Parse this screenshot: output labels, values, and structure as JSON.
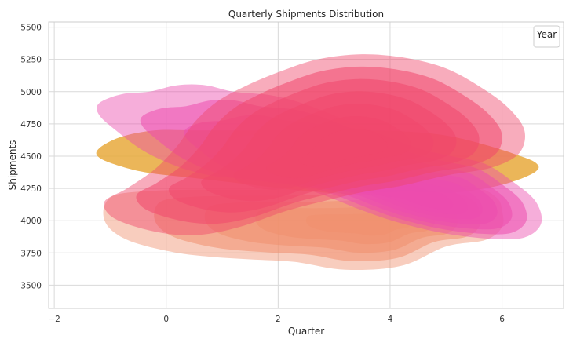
{
  "chart_data": {
    "type": "kde-contour",
    "title": "Quarterly Shipments Distribution",
    "xlabel": "Quarter",
    "ylabel": "Shipments",
    "xlim": [
      -2.1,
      7.1
    ],
    "ylim": [
      3320,
      5540
    ],
    "xticks": [
      -2,
      0,
      2,
      4,
      6
    ],
    "yticks": [
      3500,
      3750,
      4000,
      4250,
      4500,
      4750,
      5000,
      5250,
      5500
    ],
    "grid": true,
    "legend": {
      "title": "Year",
      "placement": "top-right",
      "entries": []
    },
    "series": [
      {
        "color": "#e8a93c",
        "levels": 1,
        "outline": [
          [
            -1.2,
            4560
          ],
          [
            -0.8,
            4650
          ],
          [
            -0.2,
            4700
          ],
          [
            0.5,
            4700
          ],
          [
            1.5,
            4700
          ],
          [
            2.5,
            4700
          ],
          [
            3.5,
            4700
          ],
          [
            4.3,
            4690
          ],
          [
            5.0,
            4660
          ],
          [
            5.6,
            4600
          ],
          [
            6.2,
            4520
          ],
          [
            6.6,
            4450
          ],
          [
            6.6,
            4380
          ],
          [
            6.1,
            4290
          ],
          [
            5.4,
            4230
          ],
          [
            4.5,
            4200
          ],
          [
            3.5,
            4200
          ],
          [
            2.5,
            4230
          ],
          [
            1.5,
            4280
          ],
          [
            0.5,
            4330
          ],
          [
            -0.3,
            4370
          ],
          [
            -0.8,
            4420
          ],
          [
            -1.2,
            4490
          ]
        ],
        "peak": [
          0.0,
          4520
        ]
      },
      {
        "color": "#f0906e",
        "levels": 5,
        "outline": [
          [
            -1.1,
            4120
          ],
          [
            -0.9,
            4200
          ],
          [
            -0.3,
            4230
          ],
          [
            0.5,
            4240
          ],
          [
            1.5,
            4240
          ],
          [
            2.5,
            4250
          ],
          [
            3.5,
            4270
          ],
          [
            4.5,
            4280
          ],
          [
            5.5,
            4260
          ],
          [
            5.9,
            4180
          ],
          [
            6.0,
            4080
          ],
          [
            6.0,
            3950
          ],
          [
            5.7,
            3850
          ],
          [
            5.0,
            3800
          ],
          [
            4.2,
            3650
          ],
          [
            3.2,
            3620
          ],
          [
            2.3,
            3680
          ],
          [
            1.5,
            3700
          ],
          [
            0.8,
            3720
          ],
          [
            0.2,
            3750
          ],
          [
            -0.5,
            3820
          ],
          [
            -0.9,
            3900
          ],
          [
            -1.1,
            4000
          ]
        ],
        "peak": [
          3.8,
          3980
        ]
      },
      {
        "color": "#ec4cae",
        "levels": 7,
        "outline": [
          [
            -1.2,
            4910
          ],
          [
            -0.8,
            4980
          ],
          [
            -0.3,
            5000
          ],
          [
            0.2,
            5050
          ],
          [
            0.7,
            5050
          ],
          [
            1.2,
            5000
          ],
          [
            1.9,
            4970
          ],
          [
            2.5,
            4900
          ],
          [
            3.2,
            4780
          ],
          [
            3.9,
            4660
          ],
          [
            4.5,
            4560
          ],
          [
            5.1,
            4500
          ],
          [
            5.7,
            4440
          ],
          [
            6.2,
            4300
          ],
          [
            6.6,
            4150
          ],
          [
            6.7,
            3980
          ],
          [
            6.4,
            3870
          ],
          [
            5.8,
            3860
          ],
          [
            5.0,
            3900
          ],
          [
            4.2,
            3980
          ],
          [
            3.5,
            4080
          ],
          [
            2.8,
            4200
          ],
          [
            2.2,
            4280
          ],
          [
            1.5,
            4320
          ],
          [
            0.8,
            4350
          ],
          [
            0.2,
            4420
          ],
          [
            -0.4,
            4540
          ],
          [
            -0.9,
            4700
          ],
          [
            -1.2,
            4820
          ]
        ],
        "peak": [
          4.7,
          4150
        ]
      },
      {
        "color": "#f0476b",
        "levels": 7,
        "outline": [
          [
            -1.1,
            4150
          ],
          [
            -0.7,
            4250
          ],
          [
            -0.2,
            4400
          ],
          [
            0.2,
            4580
          ],
          [
            0.5,
            4760
          ],
          [
            0.9,
            4920
          ],
          [
            1.4,
            5040
          ],
          [
            2.0,
            5150
          ],
          [
            2.7,
            5250
          ],
          [
            3.5,
            5290
          ],
          [
            4.3,
            5260
          ],
          [
            5.0,
            5180
          ],
          [
            5.6,
            5040
          ],
          [
            6.1,
            4880
          ],
          [
            6.4,
            4700
          ],
          [
            6.3,
            4520
          ],
          [
            5.8,
            4410
          ],
          [
            5.0,
            4350
          ],
          [
            4.2,
            4270
          ],
          [
            3.5,
            4220
          ],
          [
            2.8,
            4150
          ],
          [
            2.1,
            4070
          ],
          [
            1.3,
            3950
          ],
          [
            0.6,
            3890
          ],
          [
            0.0,
            3900
          ],
          [
            -0.6,
            3960
          ],
          [
            -1.0,
            4040
          ]
        ],
        "peak": [
          3.3,
          4560
        ]
      }
    ]
  }
}
